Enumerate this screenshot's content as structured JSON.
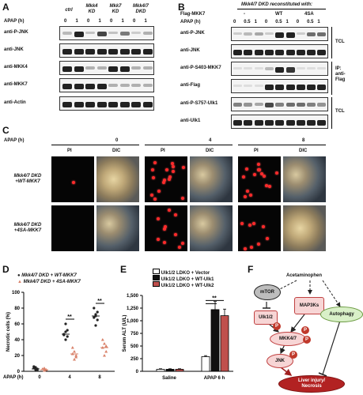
{
  "panelA": {
    "letter": "A",
    "apap_label": "APAP (h)",
    "groups": [
      "ctrl",
      "Mkk4\nKD",
      "Mkk7\nKD",
      "Mkk4/7\nDKD"
    ],
    "times": [
      "0",
      "1",
      "0",
      "1",
      "0",
      "1",
      "0",
      "1"
    ],
    "rows": [
      "anti-P-JNK",
      "anti-JNK",
      "anti-MKK4",
      "anti-MKK7",
      "anti-Actin"
    ]
  },
  "panelB": {
    "letter": "B",
    "title": "Mkk4/7 DKD reconstituted with:",
    "flag_label": "Flag-MKK7",
    "groups": [
      "-",
      "WT",
      "4SA"
    ],
    "apap_label": "APAP (h)",
    "times": [
      "0",
      "0.5",
      "1",
      "0",
      "0.5",
      "1",
      "0",
      "0.5",
      "1"
    ],
    "rows": [
      "anti-P-JNK",
      "anti-JNK",
      "anti-P-S403-MKK7",
      "anti-Flag",
      "anti-P-S757-Ulk1",
      "anti-Ulk1"
    ],
    "side_labels": [
      "TCL",
      "IP:\nanti-\nFlag",
      "TCL"
    ]
  },
  "panelC": {
    "letter": "C",
    "apap_label": "APAP (h)",
    "timepoints": [
      "0",
      "4",
      "8"
    ],
    "col_labels": [
      "PI",
      "DIC",
      "PI",
      "DIC",
      "PI",
      "DIC"
    ],
    "row_labels": [
      "Mkk4/7 DKD\n+WT-MKK7",
      "Mkk4/7 DKD\n+4SA-MKK7"
    ]
  },
  "panelD": {
    "letter": "D",
    "legend": [
      "Mkk4/7 DKD + WT-MKK7",
      "Mkk4/7 DKD + 4SA-MKK7"
    ],
    "ylabel": "Necrotic cells (%)",
    "xlabel": "APAP (h)",
    "sig": [
      "**",
      "**"
    ],
    "colors": {
      "wt": "#222222",
      "sa": "#d9826a"
    }
  },
  "panelE": {
    "letter": "E",
    "legend": [
      "Ulk1/2 LDKO + Vector",
      "Ulk1/2 LDKO + WT-Ulk1",
      "Ulk1/2 LDKO + WT-Ulk2"
    ],
    "ylabel": "Serum ALT (U/L)",
    "categories": [
      "Saline",
      "APAP 6 h"
    ],
    "sig": "**",
    "colors": {
      "vector": "#ffffff",
      "ulk1": "#111111",
      "ulk2": "#c0504d"
    }
  },
  "panelF": {
    "letter": "F",
    "nodes": {
      "acetaminophen": "Acetaminophen",
      "mtor": "mTOR",
      "ulk": "Ulk1/2",
      "map3k": "MAP3Ks",
      "autophagy": "Autophagy",
      "mkk": "MKK4/7",
      "jnk": "JNK",
      "injury": "Liver injury/\nNecrosis",
      "p": "P"
    }
  },
  "chart_data": [
    {
      "type": "scatter",
      "title": "",
      "xlabel": "APAP (h)",
      "ylabel": "Necrotic cells (%)",
      "categories": [
        "0",
        "4",
        "8"
      ],
      "ylim": [
        0,
        100
      ],
      "yticks": [
        0,
        20,
        40,
        60,
        80,
        100
      ],
      "series": [
        {
          "name": "Mkk4/7 DKD + WT-MKK7",
          "points": [
            [
              0,
              2
            ],
            [
              0,
              3
            ],
            [
              0,
              4
            ],
            [
              0,
              5
            ],
            [
              0,
              1
            ],
            [
              0,
              6
            ],
            [
              4,
              40
            ],
            [
              4,
              44
            ],
            [
              4,
              47
            ],
            [
              4,
              50
            ],
            [
              4,
              52
            ],
            [
              4,
              46
            ],
            [
              4,
              60
            ],
            [
              8,
              58
            ],
            [
              8,
              65
            ],
            [
              8,
              68
            ],
            [
              8,
              72
            ],
            [
              8,
              75
            ],
            [
              8,
              80
            ],
            [
              8,
              70
            ]
          ],
          "mean": [
            3,
            47,
            70
          ]
        },
        {
          "name": "Mkk4/7 DKD + 4SA-MKK7",
          "points": [
            [
              0,
              1
            ],
            [
              0,
              2
            ],
            [
              0,
              3
            ],
            [
              0,
              4
            ],
            [
              0,
              2
            ],
            [
              4,
              15
            ],
            [
              4,
              18
            ],
            [
              4,
              22
            ],
            [
              4,
              25
            ],
            [
              4,
              20
            ],
            [
              4,
              30
            ],
            [
              8,
              20
            ],
            [
              8,
              25
            ],
            [
              8,
              30
            ],
            [
              8,
              35
            ],
            [
              8,
              32
            ],
            [
              8,
              40
            ]
          ],
          "mean": [
            2,
            22,
            30
          ]
        }
      ]
    },
    {
      "type": "bar",
      "title": "",
      "xlabel": "",
      "ylabel": "Serum ALT (U/L)",
      "categories": [
        "Saline",
        "APAP 6 h"
      ],
      "ylim": [
        0,
        1500
      ],
      "yticks": [
        0,
        250,
        500,
        750,
        1000,
        1250,
        1500
      ],
      "series": [
        {
          "name": "Ulk1/2 LDKO + Vector",
          "values": [
            40,
            290
          ],
          "errors": [
            10,
            20
          ]
        },
        {
          "name": "Ulk1/2 LDKO + WT-Ulk1",
          "values": [
            40,
            1220
          ],
          "errors": [
            10,
            160
          ]
        },
        {
          "name": "Ulk1/2 LDKO + WT-Ulk2",
          "values": [
            40,
            1100
          ],
          "errors": [
            10,
            130
          ]
        }
      ]
    }
  ]
}
